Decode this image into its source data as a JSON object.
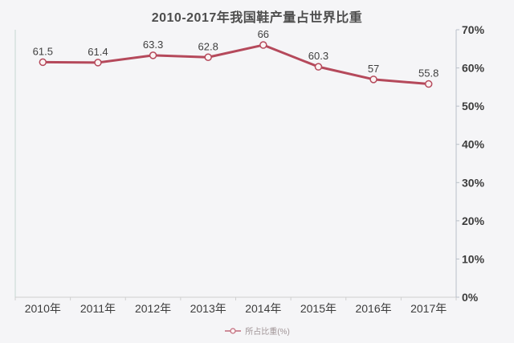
{
  "chart_data": {
    "type": "line",
    "title": "2010-2017年我国鞋产量占世界比重",
    "categories": [
      "2010年",
      "2011年",
      "2012年",
      "2013年",
      "2014年",
      "2015年",
      "2016年",
      "2017年"
    ],
    "series": [
      {
        "name": "所占比重(%)",
        "values": [
          61.5,
          61.4,
          63.3,
          62.8,
          66,
          60.3,
          57,
          55.8
        ]
      }
    ],
    "xlabel": "",
    "ylabel": "",
    "ylim": [
      0,
      70
    ],
    "y_ticks": [
      "0%",
      "10%",
      "20%",
      "30%",
      "40%",
      "50%",
      "60%",
      "70%"
    ],
    "y_axis_side": "right",
    "grid": false,
    "legend_position": "bottom",
    "data_labels_shown": true,
    "colors": {
      "background": "#f5f5f7",
      "line": "#b5495b",
      "marker_fill": "#fbf3f3",
      "marker_stroke": "#b5495b",
      "title_text": "#4d4d4d",
      "axis_text": "#3c3c3c",
      "data_label_text": "#3f3f3f",
      "left_axis_line": "#c5d6d0",
      "right_axis_line": "#b9c0c8",
      "bottom_axis_line": "#cfcfcf",
      "legend_text": "#a09496"
    }
  }
}
